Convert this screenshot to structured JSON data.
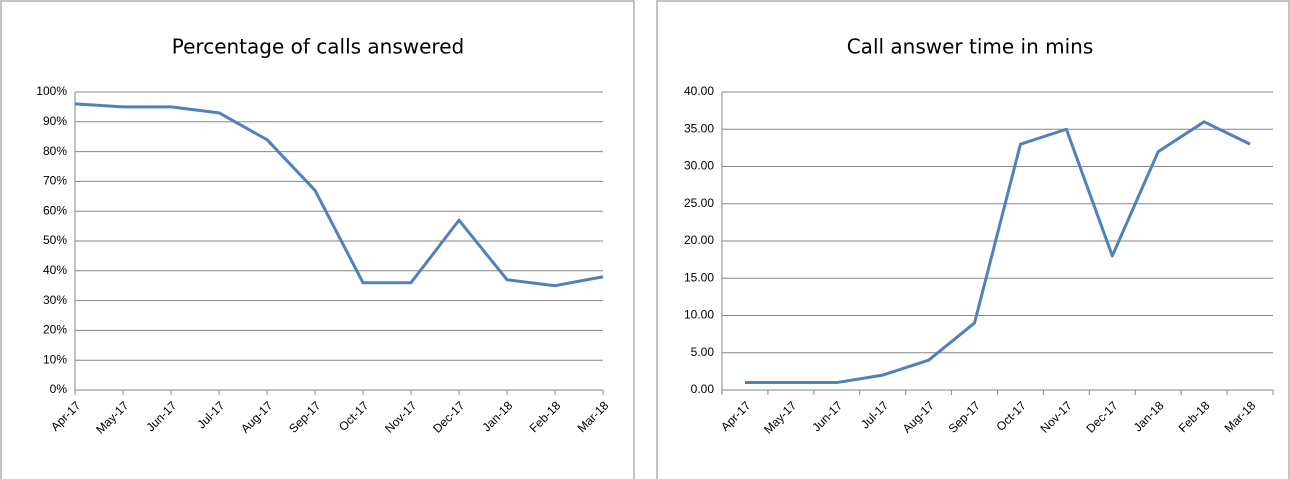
{
  "chart_data": [
    {
      "type": "line",
      "title": "Percentage of calls answered",
      "categories": [
        "Apr-17",
        "May-17",
        "Jun-17",
        "Jul-17",
        "Aug-17",
        "Sep-17",
        "Oct-17",
        "Nov-17",
        "Dec-17",
        "Jan-18",
        "Feb-18",
        "Mar-18"
      ],
      "values": [
        96,
        95,
        95,
        93,
        84,
        67,
        36,
        36,
        57,
        37,
        35,
        38
      ],
      "color": "#4f81bd",
      "grid": true,
      "ylim": [
        0,
        100
      ],
      "yticks": [
        {
          "value": 0,
          "label": "0%"
        },
        {
          "value": 10,
          "label": "10%"
        },
        {
          "value": 20,
          "label": "20%"
        },
        {
          "value": 30,
          "label": "30%"
        },
        {
          "value": 40,
          "label": "40%"
        },
        {
          "value": 50,
          "label": "50%"
        },
        {
          "value": 60,
          "label": "60%"
        },
        {
          "value": 70,
          "label": "70%"
        },
        {
          "value": 80,
          "label": "80%"
        },
        {
          "value": 90,
          "label": "90%"
        },
        {
          "value": 100,
          "label": "100%"
        }
      ]
    },
    {
      "type": "line",
      "title": "Call answer time in mins",
      "categories": [
        "Apr-17",
        "May-17",
        "Jun-17",
        "Jul-17",
        "Aug-17",
        "Sep-17",
        "Oct-17",
        "Nov-17",
        "Dec-17",
        "Jan-18",
        "Feb-18",
        "Mar-18"
      ],
      "values": [
        1,
        1,
        1,
        2,
        4,
        9,
        33,
        35,
        18,
        32,
        36,
        33
      ],
      "color": "#4f81bd",
      "grid": true,
      "ylim": [
        0,
        40
      ],
      "yticks": [
        {
          "value": 0,
          "label": "0.00"
        },
        {
          "value": 5,
          "label": "5.00"
        },
        {
          "value": 10,
          "label": "10.00"
        },
        {
          "value": 15,
          "label": "15.00"
        },
        {
          "value": 20,
          "label": "20.00"
        },
        {
          "value": 25,
          "label": "25.00"
        },
        {
          "value": 30,
          "label": "30.00"
        },
        {
          "value": 35,
          "label": "35.00"
        },
        {
          "value": 40,
          "label": "40.00"
        }
      ]
    }
  ]
}
